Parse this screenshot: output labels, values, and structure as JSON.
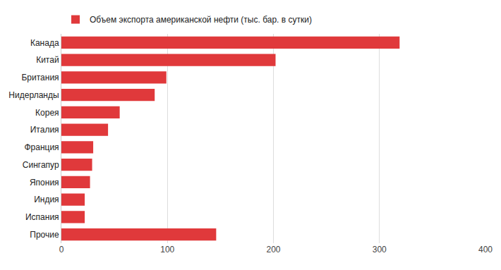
{
  "chart_data": {
    "type": "bar",
    "orientation": "horizontal",
    "categories": [
      "Канада",
      "Китай",
      "Британия",
      "Нидерланды",
      "Корея",
      "Италия",
      "Франция",
      "Сингапур",
      "Япония",
      "Индия",
      "Испания",
      "Прочие"
    ],
    "series": [
      {
        "name": "Объем экспорта американской нефти (тыс. бар. в сутки)",
        "color": "#e0393b",
        "values": [
          319,
          202,
          99,
          88,
          55,
          44,
          30,
          29,
          27,
          22,
          22,
          146
        ]
      }
    ],
    "xlim": [
      0,
      400
    ],
    "xticks": [
      0,
      100,
      200,
      300,
      400
    ],
    "grid": true,
    "legend": "top-left"
  }
}
